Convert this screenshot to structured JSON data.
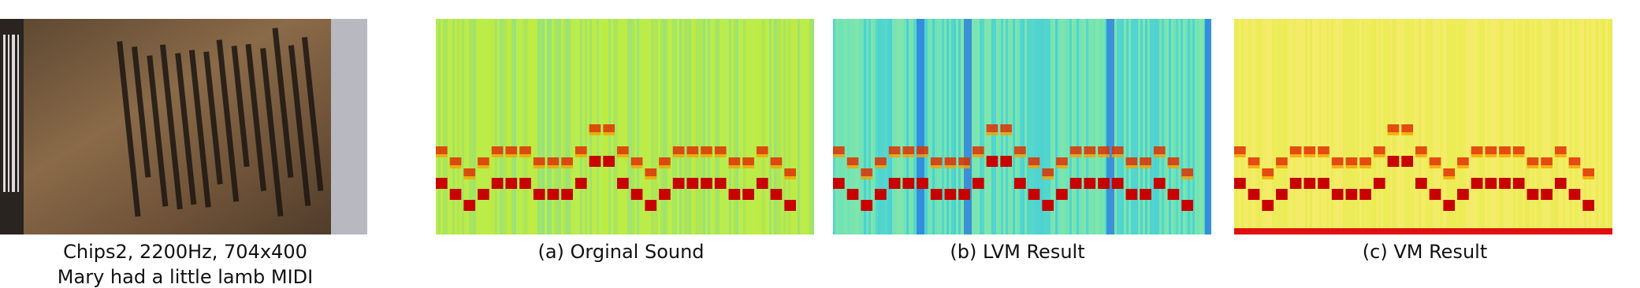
{
  "figure": {
    "photo": {
      "caption_line1": "Chips2, 2200Hz, 704x400",
      "caption_line2": "Mary had a little lamb MIDI"
    },
    "panels": [
      {
        "caption": "(a) Orginal Sound"
      },
      {
        "caption": "(b) LVM Result"
      },
      {
        "caption": "(c) VM Result"
      }
    ]
  }
}
